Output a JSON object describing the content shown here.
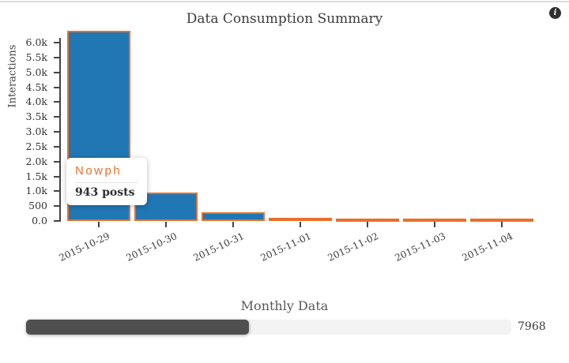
{
  "icons": {
    "info": "info-circle",
    "info_glyph": "i"
  },
  "tooltip": {
    "name": "Nowph",
    "detail": "943 posts"
  },
  "chart_data": [
    {
      "type": "bar",
      "title": "Data Consumption Summary",
      "xlabel": "",
      "ylabel": "Interactions",
      "categories": [
        "2015-10-29",
        "2015-10-30",
        "2015-10-31",
        "2015-11-01",
        "2015-11-02",
        "2015-11-03",
        "2015-11-04"
      ],
      "values": [
        6400,
        943,
        300,
        100,
        40,
        90,
        30
      ],
      "ylim": [
        0,
        6400
      ],
      "ytick_labels": [
        "0.0",
        "500",
        "1.0k",
        "1.5k",
        "2.0k",
        "2.5k",
        "3.0k",
        "3.5k",
        "4.0k",
        "4.5k",
        "5.0k",
        "5.5k",
        "6.0k"
      ],
      "ytick_values": [
        0,
        500,
        1000,
        1500,
        2000,
        2500,
        3000,
        3500,
        4000,
        4500,
        5000,
        5500,
        6000
      ],
      "grid": false,
      "legend": false,
      "bar_fill": "#2077b4",
      "bar_border": "#e8702a",
      "tooltip_for_value": 943
    },
    {
      "type": "bar",
      "subtype": "progress",
      "title": "Monthly Data",
      "value_label": "7968",
      "fill_fraction": 0.46,
      "fill_color": "#4f4f4f",
      "track_color": "#f3f3f3"
    }
  ]
}
